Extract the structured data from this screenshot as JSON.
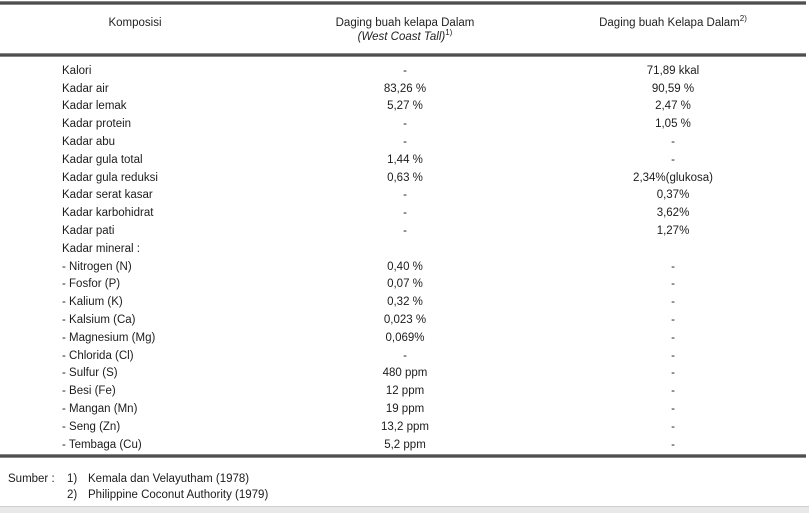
{
  "table": {
    "headers": {
      "col1": "Komposisi",
      "col2_line1": "Daging buah kelapa Dalam",
      "col2_line2": "(West Coast Tall)",
      "col2_sup": "1)",
      "col3": "Daging buah Kelapa Dalam",
      "col3_sup": "2)"
    },
    "rows": [
      {
        "label": "Kalori",
        "col2": "-",
        "col3": "71,89 kkal"
      },
      {
        "label": "Kadar air",
        "col2": "83,26 %",
        "col3": "90,59 %"
      },
      {
        "label": "Kadar lemak",
        "col2": "5,27 %",
        "col3": "2,47 %"
      },
      {
        "label": "Kadar protein",
        "col2": "-",
        "col3": "1,05 %"
      },
      {
        "label": "Kadar abu",
        "col2": "-",
        "col3": "-"
      },
      {
        "label": "Kadar gula total",
        "col2": "1,44 %",
        "col3": "-"
      },
      {
        "label": "Kadar gula reduksi",
        "col2": "0,63 %",
        "col3": "2,34%(glukosa)"
      },
      {
        "label": "Kadar serat kasar",
        "col2": "-",
        "col3": "0,37%"
      },
      {
        "label": "Kadar karbohidrat",
        "col2": "-",
        "col3": "3,62%"
      },
      {
        "label": "Kadar pati",
        "col2": "-",
        "col3": "1,27%"
      },
      {
        "label": "Kadar mineral :",
        "col2": "",
        "col3": ""
      },
      {
        "label": "- Nitrogen (N)",
        "col2": "0,40 %",
        "col3": "-"
      },
      {
        "label": "- Fosfor (P)",
        "col2": "0,07 %",
        "col3": "-"
      },
      {
        "label": "- Kalium (K)",
        "col2": "0,32 %",
        "col3": "-"
      },
      {
        "label": "- Kalsium (Ca)",
        "col2": "0,023 %",
        "col3": "-"
      },
      {
        "label": "- Magnesium (Mg)",
        "col2": "0,069%",
        "col3": "-"
      },
      {
        "label": "- Chlorida (Cl)",
        "col2": "-",
        "col3": "-"
      },
      {
        "label": "- Sulfur (S)",
        "col2": "480 ppm",
        "col3": "-"
      },
      {
        "label": "- Besi (Fe)",
        "col2": "12 ppm",
        "col3": "-"
      },
      {
        "label": "- Mangan (Mn)",
        "col2": "19 ppm",
        "col3": "-"
      },
      {
        "label": "- Seng (Zn)",
        "col2": "13,2 ppm",
        "col3": "-"
      },
      {
        "label": "- Tembaga (Cu)",
        "col2": "5,2 ppm",
        "col3": "-"
      }
    ]
  },
  "footer": {
    "sumber_label": "Sumber :",
    "sources": [
      {
        "num": "1)",
        "text": "Kemala dan Velayutham (1978)"
      },
      {
        "num": "2)",
        "text": "Philippine Coconut Authority (1979)"
      }
    ]
  }
}
